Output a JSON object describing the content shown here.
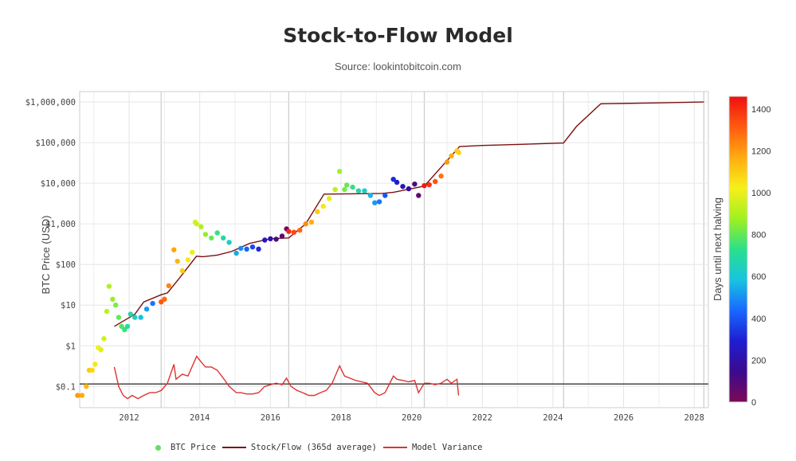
{
  "title": "Stock-to-Flow Model",
  "subtitle": "Source: lookintobitcoin.com",
  "chart_data": {
    "type": "scatter",
    "title": "Stock-to-Flow Model",
    "subtitle": "Source: lookintobitcoin.com",
    "xlabel": "",
    "ylabel": "BTC Price (USD)",
    "y_scale": "log",
    "xlim": [
      2010.6,
      2028.4
    ],
    "ylim": [
      0.03,
      1800000
    ],
    "x_ticks": [
      "2012",
      "2014",
      "2016",
      "2018",
      "2020",
      "2022",
      "2024",
      "2026",
      "2028"
    ],
    "y_ticks": [
      {
        "value": 0.1,
        "label": "$0.1"
      },
      {
        "value": 1,
        "label": "$1"
      },
      {
        "value": 10,
        "label": "$10"
      },
      {
        "value": 100,
        "label": "$100"
      },
      {
        "value": 1000,
        "label": "$1,000"
      },
      {
        "value": 10000,
        "label": "$10,000"
      },
      {
        "value": 100000,
        "label": "$100,000"
      },
      {
        "value": 1000000,
        "label": "$1,000,000"
      }
    ],
    "grid": true,
    "reference_line_y": 0.115,
    "colorbar": {
      "label": "Days until next halving",
      "range": [
        0,
        1460
      ],
      "ticks": [
        "0",
        "200",
        "400",
        "600",
        "800",
        "1000",
        "1200",
        "1400"
      ],
      "colorscale": [
        "#7b0a55",
        "#3c0a8e",
        "#1e1ed2",
        "#1868ff",
        "#18c4e0",
        "#2ae08a",
        "#a0f020",
        "#f7f01a",
        "#ffac10",
        "#ff5a10",
        "#ee1010"
      ]
    },
    "halvings": [
      "2012-11-28",
      "2016-07-09",
      "2020-05-11",
      "2024-04-20",
      "2028-04-10"
    ],
    "series": [
      {
        "name": "BTC Price",
        "kind": "markers",
        "color": "#66dd66",
        "x": [
          "2010-07-18",
          "2010-09-01",
          "2010-10-15",
          "2010-11-15",
          "2010-12-15",
          "2011-01-15",
          "2011-02-15",
          "2011-03-15",
          "2011-04-15",
          "2011-05-15",
          "2011-06-08",
          "2011-07-15",
          "2011-08-15",
          "2011-09-15",
          "2011-10-15",
          "2011-11-15",
          "2011-12-15",
          "2012-01-15",
          "2012-03-01",
          "2012-05-01",
          "2012-07-01",
          "2012-09-01",
          "2012-11-28",
          "2013-01-01",
          "2013-02-15",
          "2013-04-09",
          "2013-05-15",
          "2013-07-05",
          "2013-09-01",
          "2013-10-15",
          "2013-11-15",
          "2013-11-30",
          "2014-01-15",
          "2014-03-01",
          "2014-05-01",
          "2014-07-01",
          "2014-09-01",
          "2014-11-01",
          "2015-01-14",
          "2015-03-01",
          "2015-05-01",
          "2015-07-01",
          "2015-09-01",
          "2015-11-04",
          "2016-01-01",
          "2016-03-01",
          "2016-05-01",
          "2016-06-16",
          "2016-07-09",
          "2016-09-01",
          "2016-11-01",
          "2017-01-01",
          "2017-03-01",
          "2017-05-01",
          "2017-07-01",
          "2017-09-01",
          "2017-11-01",
          "2017-12-17",
          "2018-02-06",
          "2018-03-01",
          "2018-05-01",
          "2018-07-01",
          "2018-09-01",
          "2018-11-01",
          "2018-12-15",
          "2019-02-01",
          "2019-04-01",
          "2019-06-26",
          "2019-08-01",
          "2019-10-01",
          "2019-12-01",
          "2020-02-01",
          "2020-03-12",
          "2020-05-11",
          "2020-07-01",
          "2020-09-01",
          "2020-11-01",
          "2021-01-01",
          "2021-02-15",
          "2021-04-14",
          "2021-05-01"
        ],
        "y": [
          0.06,
          0.06,
          0.1,
          0.25,
          0.25,
          0.35,
          0.9,
          0.8,
          1.5,
          7,
          29,
          14,
          10,
          5,
          3,
          2.5,
          3,
          6,
          5,
          5,
          8,
          11,
          12,
          14,
          30,
          230,
          120,
          70,
          130,
          200,
          1100,
          1000,
          850,
          550,
          450,
          600,
          450,
          350,
          190,
          250,
          240,
          270,
          240,
          400,
          430,
          420,
          500,
          750,
          650,
          620,
          700,
          1000,
          1100,
          2000,
          2700,
          4200,
          7000,
          19500,
          7000,
          9000,
          8000,
          6500,
          6500,
          5000,
          3300,
          3500,
          5000,
          12500,
          10500,
          8300,
          7300,
          9500,
          5000,
          8700,
          9200,
          11000,
          15000,
          33000,
          47000,
          63000,
          57000
        ],
        "days_until_halving": [
          1200,
          1170,
          1140,
          1105,
          1075,
          1045,
          1015,
          985,
          955,
          925,
          905,
          865,
          835,
          805,
          775,
          745,
          715,
          685,
          640,
          580,
          520,
          460,
          1320,
          1285,
          1235,
          1180,
          1145,
          1095,
          1040,
          995,
          965,
          950,
          905,
          860,
          800,
          740,
          680,
          620,
          545,
          495,
          435,
          375,
          315,
          250,
          190,
          130,
          70,
          23,
          1402,
          1350,
          1290,
          1225,
          1165,
          1105,
          1045,
          985,
          925,
          880,
          825,
          800,
          740,
          680,
          620,
          560,
          515,
          465,
          405,
          320,
          285,
          225,
          165,
          100,
          60,
          1440,
          1390,
          1330,
          1270,
          1205,
          1160,
          1100,
          1085
        ]
      },
      {
        "name": "Stock/Flow (365d average)",
        "kind": "line",
        "color": "#7b1010",
        "x": [
          "2011-08-01",
          "2012-03-01",
          "2012-06-01",
          "2012-11-28",
          "2013-02-01",
          "2013-06-01",
          "2013-11-28",
          "2014-02-01",
          "2014-07-01",
          "2014-11-28",
          "2015-06-01",
          "2016-01-01",
          "2016-07-09",
          "2017-01-01",
          "2017-07-09",
          "2018-07-01",
          "2019-03-01",
          "2019-07-01",
          "2020-05-11",
          "2021-05-11",
          "2022-01-01",
          "2023-01-01",
          "2024-04-20",
          "2024-09-01",
          "2025-05-10",
          "2026-01-01",
          "2027-01-01",
          "2028-04-10"
        ],
        "y": [
          3,
          6,
          12,
          18,
          20,
          45,
          160,
          155,
          170,
          210,
          330,
          430,
          450,
          1000,
          5400,
          5500,
          5600,
          6000,
          8500,
          80000,
          85000,
          90000,
          98000,
          250000,
          900000,
          920000,
          950000,
          1000000
        ]
      },
      {
        "name": "Model Variance",
        "kind": "line",
        "color": "#dd3333",
        "x": [
          "2011-08-01",
          "2011-09-15",
          "2011-11-01",
          "2011-12-15",
          "2012-02-01",
          "2012-04-01",
          "2012-06-01",
          "2012-08-01",
          "2012-10-01",
          "2012-12-01",
          "2013-02-01",
          "2013-04-09",
          "2013-05-01",
          "2013-07-05",
          "2013-09-01",
          "2013-11-30",
          "2014-01-15",
          "2014-03-01",
          "2014-05-01",
          "2014-07-01",
          "2014-09-01",
          "2014-11-01",
          "2015-01-14",
          "2015-03-01",
          "2015-05-01",
          "2015-07-01",
          "2015-09-01",
          "2015-11-04",
          "2016-01-01",
          "2016-03-01",
          "2016-05-01",
          "2016-06-16",
          "2016-08-01",
          "2016-10-01",
          "2016-12-01",
          "2017-02-01",
          "2017-04-01",
          "2017-06-01",
          "2017-08-01",
          "2017-10-01",
          "2017-12-17",
          "2018-02-06",
          "2018-04-01",
          "2018-06-01",
          "2018-08-01",
          "2018-10-01",
          "2018-12-15",
          "2019-02-01",
          "2019-04-01",
          "2019-06-26",
          "2019-08-01",
          "2019-10-01",
          "2019-12-01",
          "2020-02-01",
          "2020-03-12",
          "2020-05-11",
          "2020-07-01",
          "2020-09-01",
          "2020-11-01",
          "2021-01-01",
          "2021-02-15",
          "2021-04-14",
          "2021-05-01"
        ],
        "y": [
          0.3,
          0.1,
          0.06,
          0.05,
          0.06,
          0.05,
          0.06,
          0.07,
          0.07,
          0.08,
          0.12,
          0.35,
          0.15,
          0.2,
          0.18,
          0.55,
          0.4,
          0.3,
          0.3,
          0.25,
          0.16,
          0.1,
          0.07,
          0.07,
          0.065,
          0.065,
          0.07,
          0.1,
          0.11,
          0.12,
          0.11,
          0.16,
          0.1,
          0.08,
          0.07,
          0.06,
          0.06,
          0.07,
          0.08,
          0.12,
          0.32,
          0.18,
          0.16,
          0.14,
          0.13,
          0.12,
          0.07,
          0.06,
          0.07,
          0.18,
          0.15,
          0.14,
          0.13,
          0.14,
          0.07,
          0.12,
          0.12,
          0.11,
          0.12,
          0.15,
          0.12,
          0.15,
          0.06
        ]
      }
    ]
  }
}
